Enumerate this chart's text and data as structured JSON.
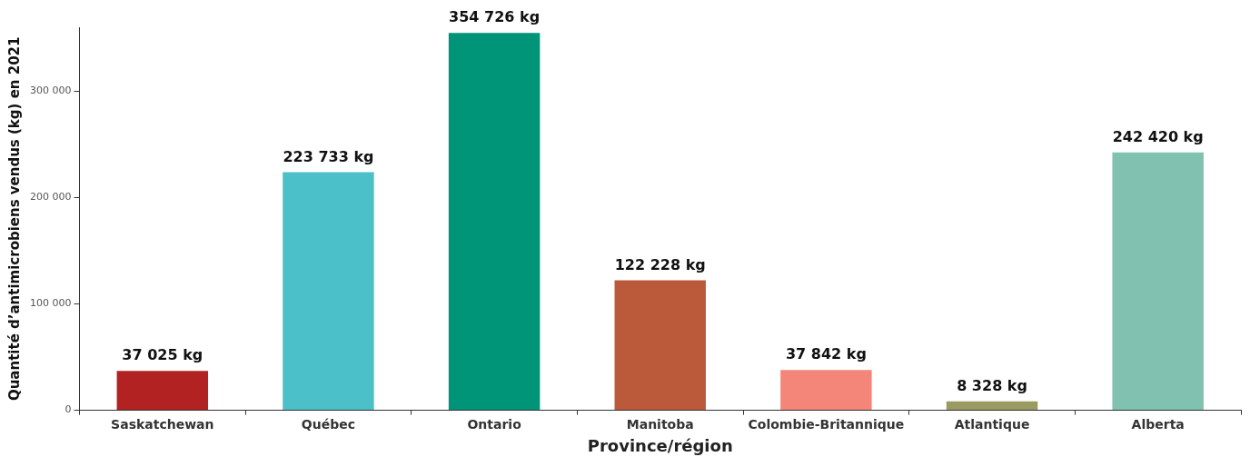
{
  "chart_data": {
    "type": "bar",
    "xlabel": "Province/région",
    "ylabel": "Quantité d’antimicrobiens vendus (kg) en 2021",
    "categories": [
      "Saskatchewan",
      "Québec",
      "Ontario",
      "Manitoba",
      "Colombie-Britannique",
      "Atlantique",
      "Alberta"
    ],
    "values": [
      37025,
      223733,
      354726,
      122228,
      37842,
      8328,
      242420
    ],
    "colors": [
      "#b22222",
      "#4bc0c8",
      "#009479",
      "#bb5a3a",
      "#f48679",
      "#9a9a62",
      "#80c1b0"
    ],
    "value_labels": [
      "37 025 kg",
      "223 733 kg",
      "354 726 kg",
      "122 228 kg",
      "37 842 kg",
      "8 328 kg",
      "242 420 kg"
    ],
    "ylim": [
      0,
      360000
    ],
    "yticks": [
      {
        "value": 0,
        "label": "0"
      },
      {
        "value": 100000,
        "label": "100 000"
      },
      {
        "value": 200000,
        "label": "200 000"
      },
      {
        "value": 300000,
        "label": "300 000"
      }
    ],
    "grid": false,
    "legend": false
  }
}
